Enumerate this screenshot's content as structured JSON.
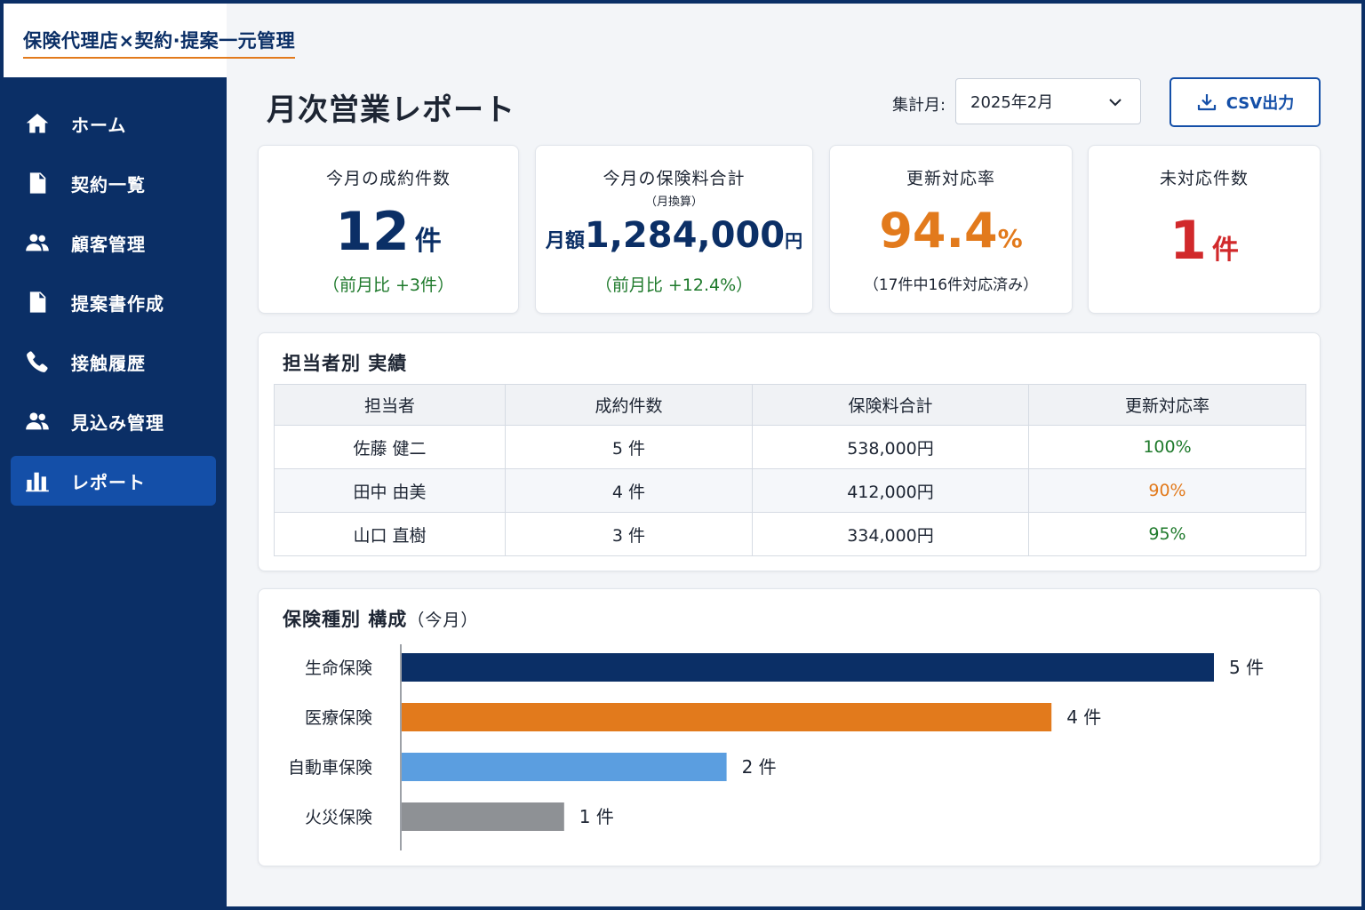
{
  "app": {
    "title": "保険代理店×契約·提案一元管理"
  },
  "sidebar": {
    "items": [
      {
        "label": "ホーム",
        "icon": "home-icon",
        "active": false
      },
      {
        "label": "契約一覧",
        "icon": "document-icon",
        "active": false
      },
      {
        "label": "顧客管理",
        "icon": "users-icon",
        "active": false
      },
      {
        "label": "提案書作成",
        "icon": "document-icon",
        "active": false
      },
      {
        "label": "接触履歴",
        "icon": "phone-icon",
        "active": false
      },
      {
        "label": "見込み管理",
        "icon": "users-icon",
        "active": false
      },
      {
        "label": "レポート",
        "icon": "bar-chart-icon",
        "active": true
      }
    ]
  },
  "header": {
    "page_title": "月次営業レポート",
    "period_label": "集計月:",
    "period_value": "2025年2月",
    "csv_button": "CSV出力"
  },
  "kpis": {
    "contracts": {
      "title": "今月の成約件数",
      "value": "12",
      "unit": "件",
      "note": "（前月比 +3件）"
    },
    "premium": {
      "title": "今月の保険料合計",
      "subtitle": "（月換算）",
      "prefix": "月額",
      "value": "1,284,000",
      "unit": "円",
      "note": "（前月比 +12.4%）"
    },
    "renewal": {
      "title": "更新対応率",
      "value": "94.4",
      "unit": "%",
      "note": "（17件中16件対応済み）"
    },
    "pending": {
      "title": "未対応件数",
      "value": "1",
      "unit": "件"
    }
  },
  "performance": {
    "title": "担当者別 実績",
    "columns": [
      "担当者",
      "成約件数",
      "保険料合計",
      "更新対応率"
    ],
    "rows": [
      {
        "name": "佐藤 健二",
        "count": "5 件",
        "premium": "538,000円",
        "rate": "100%",
        "rate_color": "#1f7a2c"
      },
      {
        "name": "田中 由美",
        "count": "4 件",
        "premium": "412,000円",
        "rate": "90%",
        "rate_color": "#e27a1c"
      },
      {
        "name": "山口 直樹",
        "count": "3 件",
        "premium": "334,000円",
        "rate": "95%",
        "rate_color": "#1f7a2c"
      }
    ]
  },
  "composition": {
    "title": "保険種別 構成",
    "title_sub": "（今月）"
  },
  "chart_data": {
    "type": "bar",
    "orientation": "horizontal",
    "categories": [
      "生命保険",
      "医療保険",
      "自動車保険",
      "火災保険"
    ],
    "values": [
      5,
      4,
      2,
      1
    ],
    "value_labels": [
      "5 件",
      "4 件",
      "2 件",
      "1 件"
    ],
    "colors": [
      "#0b2f66",
      "#e27a1c",
      "#5b9ee0",
      "#8e9195"
    ],
    "xlim": [
      0,
      5
    ],
    "grid": false
  }
}
